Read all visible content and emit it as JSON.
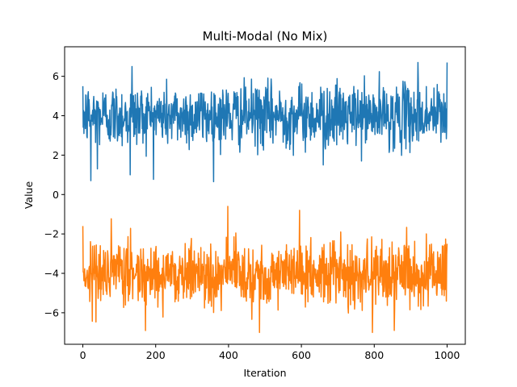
{
  "chart_data": {
    "type": "line",
    "title": "Multi-Modal (No Mix)",
    "xlabel": "Iteration",
    "ylabel": "Value",
    "xlim": [
      -50,
      1050
    ],
    "ylim": [
      -7.6,
      7.5
    ],
    "xticks": [
      0,
      200,
      400,
      600,
      800,
      1000
    ],
    "yticks": [
      -6,
      -4,
      -2,
      0,
      2,
      4,
      6
    ],
    "grid": false,
    "legend": "none",
    "x": {
      "start": 0,
      "end": 1000,
      "step": 1
    },
    "series": [
      {
        "color": "#1f77b4",
        "mean": 4.0,
        "spread": 0.8,
        "range": [
          0.65,
          6.8
        ],
        "notable_points": [
          {
            "x": 0,
            "y": 5.5
          },
          {
            "x": 22,
            "y": 0.7
          },
          {
            "x": 40,
            "y": 1.3
          },
          {
            "x": 130,
            "y": 1.0
          },
          {
            "x": 135,
            "y": 6.5
          },
          {
            "x": 660,
            "y": 1.5
          },
          {
            "x": 920,
            "y": 6.7
          },
          {
            "x": 1000,
            "y": 6.7
          }
        ]
      },
      {
        "color": "#ff7f0e",
        "mean": -4.0,
        "spread": 0.8,
        "range": [
          -7.05,
          -0.6
        ],
        "notable_points": [
          {
            "x": 0,
            "y": -1.6
          },
          {
            "x": 398,
            "y": -0.6
          },
          {
            "x": 485,
            "y": -7.0
          },
          {
            "x": 595,
            "y": -0.8
          },
          {
            "x": 795,
            "y": -7.0
          },
          {
            "x": 855,
            "y": -6.9
          },
          {
            "x": 1000,
            "y": -2.5
          }
        ]
      }
    ]
  }
}
